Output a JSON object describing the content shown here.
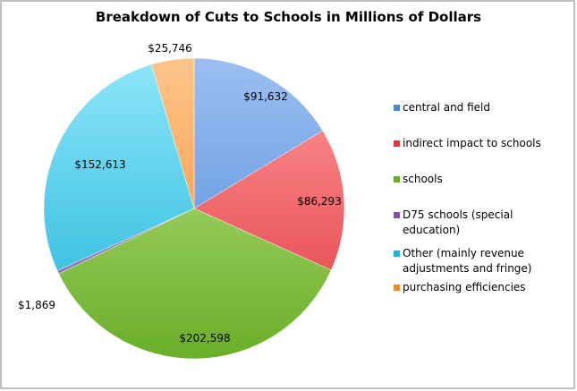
{
  "chart_data": {
    "type": "pie",
    "title": "Breakdown of Cuts to Schools in Millions of Dollars",
    "slices": [
      {
        "label": "central and field",
        "value": 91632,
        "display": "$91,632",
        "color": "#4a86d6",
        "color_light": "#9cbff2"
      },
      {
        "label": "indirect impact to schools",
        "value": 86293,
        "display": "$86,293",
        "color": "#e0393f",
        "color_light": "#ff9a9c"
      },
      {
        "label": "schools",
        "value": 202598,
        "display": "$202,598",
        "color": "#6aae28",
        "color_light": "#bde68a"
      },
      {
        "label": "D75 schools (special education)",
        "value": 1869,
        "display": "$1,869",
        "color": "#7a5aa6",
        "color_light": "#b6a0d6"
      },
      {
        "label": "Other (mainly revenue adjustments and fringe)",
        "value": 152613,
        "display": "$152,613",
        "color": "#1eb4d8",
        "color_light": "#8ee6fa"
      },
      {
        "label": "purchasing efficiencies",
        "value": 25746,
        "display": "$25,746",
        "color": "#f08a2c",
        "color_light": "#ffc48a"
      }
    ],
    "legend_position": "right"
  }
}
